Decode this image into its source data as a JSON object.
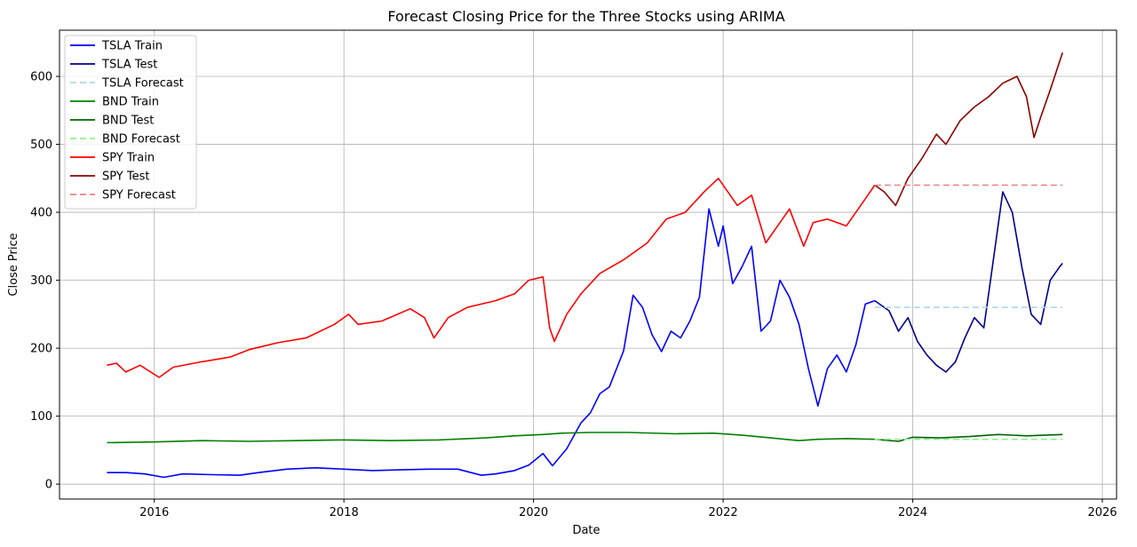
{
  "chart_data": {
    "type": "line",
    "title": "Forecast  Closing Price for the Three Stocks using ARIMA",
    "xlabel": "Date",
    "ylabel": "Close Price",
    "xlim": [
      2015.0,
      2026.15
    ],
    "ylim": [
      -22,
      668
    ],
    "x_ticks": [
      2016,
      2018,
      2020,
      2022,
      2024,
      2026
    ],
    "x_tick_labels": [
      "2016",
      "2018",
      "2020",
      "2022",
      "2024",
      "2026"
    ],
    "y_ticks": [
      0,
      100,
      200,
      300,
      400,
      500,
      600
    ],
    "y_tick_labels": [
      "0",
      "100",
      "200",
      "300",
      "400",
      "500",
      "600"
    ],
    "grid": true,
    "legend_position": "upper-left",
    "series": [
      {
        "name": "TSLA Train",
        "color": "#0000ff",
        "style": "solid",
        "points": [
          [
            2015.5,
            17
          ],
          [
            2015.7,
            17
          ],
          [
            2015.9,
            15
          ],
          [
            2016.1,
            10
          ],
          [
            2016.3,
            15
          ],
          [
            2016.6,
            14
          ],
          [
            2016.9,
            13
          ],
          [
            2017.1,
            17
          ],
          [
            2017.4,
            22
          ],
          [
            2017.7,
            24
          ],
          [
            2018.0,
            22
          ],
          [
            2018.3,
            20
          ],
          [
            2018.6,
            21
          ],
          [
            2018.9,
            22
          ],
          [
            2019.2,
            22
          ],
          [
            2019.45,
            13
          ],
          [
            2019.6,
            15
          ],
          [
            2019.8,
            20
          ],
          [
            2019.95,
            28
          ],
          [
            2020.1,
            45
          ],
          [
            2020.2,
            27
          ],
          [
            2020.35,
            52
          ],
          [
            2020.5,
            90
          ],
          [
            2020.6,
            105
          ],
          [
            2020.7,
            133
          ],
          [
            2020.8,
            143
          ],
          [
            2020.95,
            196
          ],
          [
            2021.05,
            278
          ],
          [
            2021.15,
            260
          ],
          [
            2021.25,
            220
          ],
          [
            2021.35,
            195
          ],
          [
            2021.45,
            225
          ],
          [
            2021.55,
            215
          ],
          [
            2021.65,
            240
          ],
          [
            2021.75,
            275
          ],
          [
            2021.85,
            405
          ],
          [
            2021.95,
            350
          ],
          [
            2022.0,
            380
          ],
          [
            2022.1,
            295
          ],
          [
            2022.2,
            320
          ],
          [
            2022.3,
            350
          ],
          [
            2022.4,
            225
          ],
          [
            2022.5,
            240
          ],
          [
            2022.6,
            300
          ],
          [
            2022.7,
            275
          ],
          [
            2022.8,
            235
          ],
          [
            2022.9,
            170
          ],
          [
            2023.0,
            115
          ],
          [
            2023.1,
            170
          ],
          [
            2023.2,
            190
          ],
          [
            2023.3,
            165
          ],
          [
            2023.4,
            205
          ],
          [
            2023.5,
            265
          ],
          [
            2023.6,
            270
          ]
        ]
      },
      {
        "name": "TSLA Test",
        "color": "#00008b",
        "style": "solid",
        "points": [
          [
            2023.6,
            270
          ],
          [
            2023.75,
            255
          ],
          [
            2023.85,
            225
          ],
          [
            2023.95,
            245
          ],
          [
            2024.05,
            210
          ],
          [
            2024.15,
            190
          ],
          [
            2024.25,
            175
          ],
          [
            2024.35,
            165
          ],
          [
            2024.45,
            180
          ],
          [
            2024.55,
            215
          ],
          [
            2024.65,
            245
          ],
          [
            2024.75,
            230
          ],
          [
            2024.85,
            330
          ],
          [
            2024.95,
            430
          ],
          [
            2025.05,
            400
          ],
          [
            2025.15,
            320
          ],
          [
            2025.25,
            250
          ],
          [
            2025.35,
            235
          ],
          [
            2025.45,
            300
          ],
          [
            2025.55,
            320
          ],
          [
            2025.58,
            325
          ]
        ]
      },
      {
        "name": "TSLA Forecast",
        "color": "#add8e6",
        "style": "dashed",
        "points": [
          [
            2023.6,
            260
          ],
          [
            2025.58,
            260
          ]
        ]
      },
      {
        "name": "BND Train",
        "color": "#008000",
        "style": "solid",
        "points": [
          [
            2015.5,
            61
          ],
          [
            2016.0,
            62
          ],
          [
            2016.5,
            64
          ],
          [
            2017.0,
            63
          ],
          [
            2017.5,
            64
          ],
          [
            2018.0,
            65
          ],
          [
            2018.5,
            64
          ],
          [
            2019.0,
            65
          ],
          [
            2019.5,
            68
          ],
          [
            2019.8,
            71
          ],
          [
            2020.1,
            73
          ],
          [
            2020.3,
            75
          ],
          [
            2020.6,
            76
          ],
          [
            2021.0,
            76
          ],
          [
            2021.5,
            74
          ],
          [
            2021.9,
            75
          ],
          [
            2022.2,
            72
          ],
          [
            2022.5,
            68
          ],
          [
            2022.8,
            64
          ],
          [
            2023.0,
            66
          ],
          [
            2023.3,
            67
          ],
          [
            2023.6,
            66
          ]
        ]
      },
      {
        "name": "BND Test",
        "color": "#006400",
        "style": "solid",
        "points": [
          [
            2023.6,
            66
          ],
          [
            2023.85,
            63
          ],
          [
            2024.0,
            69
          ],
          [
            2024.3,
            68
          ],
          [
            2024.6,
            70
          ],
          [
            2024.9,
            73
          ],
          [
            2025.2,
            71
          ],
          [
            2025.58,
            73
          ]
        ]
      },
      {
        "name": "BND Forecast",
        "color": "#90ee90",
        "style": "dashed",
        "points": [
          [
            2023.6,
            66
          ],
          [
            2025.58,
            66
          ]
        ]
      },
      {
        "name": "SPY Train",
        "color": "#ff0000",
        "style": "solid",
        "points": [
          [
            2015.5,
            175
          ],
          [
            2015.6,
            178
          ],
          [
            2015.7,
            165
          ],
          [
            2015.85,
            175
          ],
          [
            2016.05,
            157
          ],
          [
            2016.2,
            172
          ],
          [
            2016.5,
            180
          ],
          [
            2016.8,
            187
          ],
          [
            2017.0,
            198
          ],
          [
            2017.3,
            208
          ],
          [
            2017.6,
            215
          ],
          [
            2017.9,
            235
          ],
          [
            2018.05,
            250
          ],
          [
            2018.15,
            235
          ],
          [
            2018.4,
            240
          ],
          [
            2018.7,
            258
          ],
          [
            2018.85,
            245
          ],
          [
            2018.95,
            215
          ],
          [
            2019.1,
            245
          ],
          [
            2019.3,
            260
          ],
          [
            2019.45,
            265
          ],
          [
            2019.6,
            270
          ],
          [
            2019.8,
            280
          ],
          [
            2019.95,
            300
          ],
          [
            2020.1,
            305
          ],
          [
            2020.17,
            230
          ],
          [
            2020.22,
            210
          ],
          [
            2020.35,
            250
          ],
          [
            2020.5,
            280
          ],
          [
            2020.7,
            310
          ],
          [
            2020.95,
            330
          ],
          [
            2021.2,
            355
          ],
          [
            2021.4,
            390
          ],
          [
            2021.6,
            400
          ],
          [
            2021.8,
            430
          ],
          [
            2021.95,
            450
          ],
          [
            2022.05,
            430
          ],
          [
            2022.15,
            410
          ],
          [
            2022.3,
            425
          ],
          [
            2022.45,
            355
          ],
          [
            2022.6,
            385
          ],
          [
            2022.7,
            405
          ],
          [
            2022.85,
            350
          ],
          [
            2022.95,
            385
          ],
          [
            2023.1,
            390
          ],
          [
            2023.3,
            380
          ],
          [
            2023.5,
            420
          ],
          [
            2023.6,
            440
          ]
        ]
      },
      {
        "name": "SPY Test",
        "color": "#8b0000",
        "style": "solid",
        "points": [
          [
            2023.6,
            440
          ],
          [
            2023.7,
            430
          ],
          [
            2023.82,
            410
          ],
          [
            2023.95,
            450
          ],
          [
            2024.1,
            480
          ],
          [
            2024.25,
            515
          ],
          [
            2024.35,
            500
          ],
          [
            2024.5,
            535
          ],
          [
            2024.65,
            555
          ],
          [
            2024.8,
            570
          ],
          [
            2024.95,
            590
          ],
          [
            2025.1,
            600
          ],
          [
            2025.2,
            570
          ],
          [
            2025.28,
            510
          ],
          [
            2025.35,
            540
          ],
          [
            2025.45,
            580
          ],
          [
            2025.58,
            635
          ]
        ]
      },
      {
        "name": "SPY Forecast",
        "color": "#f08080",
        "style": "dashed",
        "points": [
          [
            2023.6,
            440
          ],
          [
            2025.58,
            440
          ]
        ]
      }
    ]
  }
}
